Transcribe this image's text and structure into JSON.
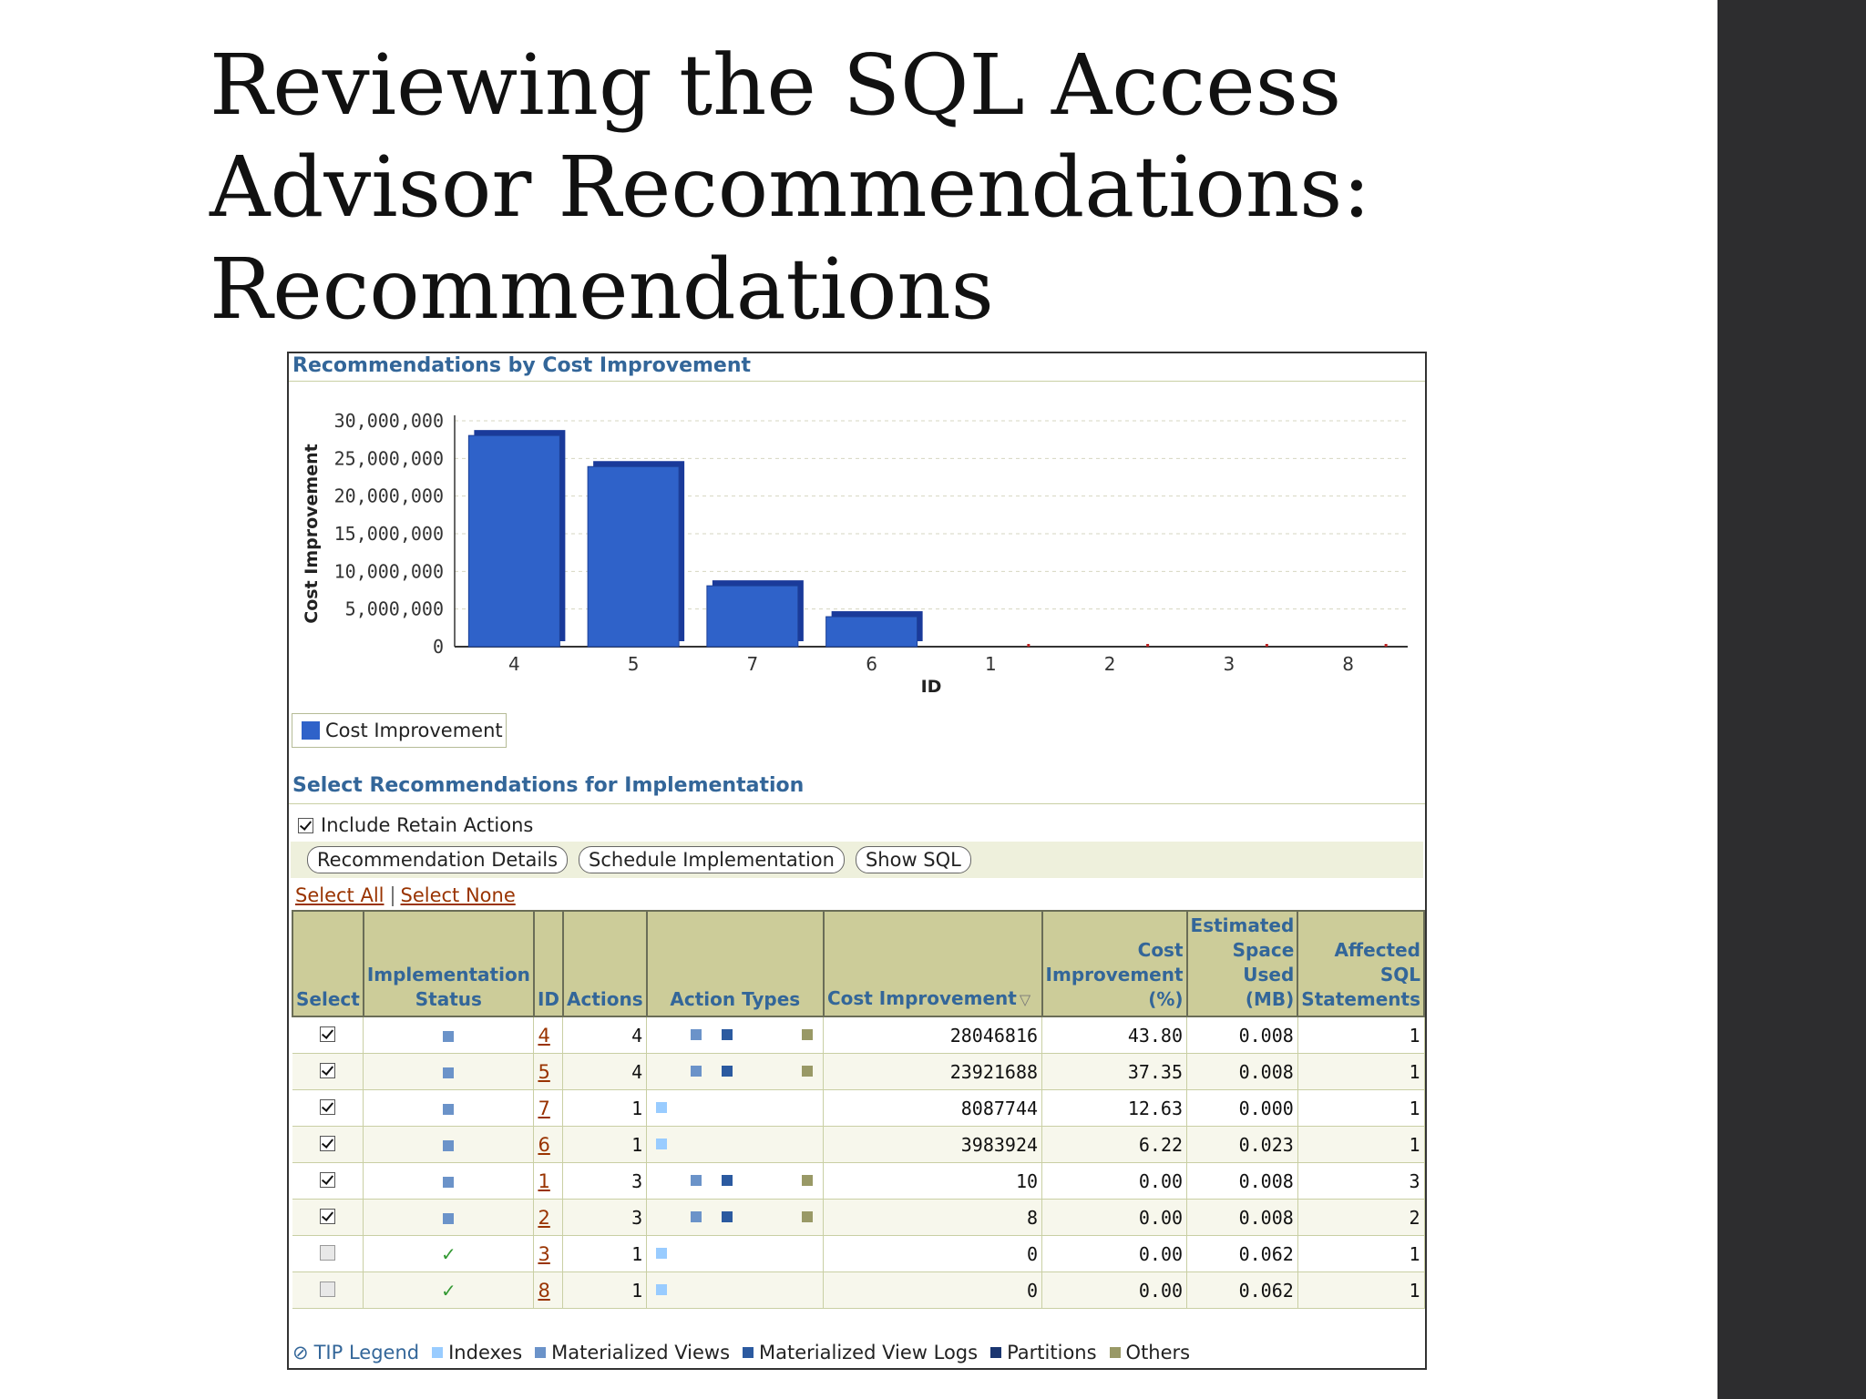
{
  "slide": {
    "title_lines": [
      "Reviewing the SQL Access",
      "Advisor Recommendations:",
      "Recommendations"
    ]
  },
  "chart_section": {
    "title": "Recommendations by Cost Improvement"
  },
  "chart_data": {
    "type": "bar",
    "xlabel": "ID",
    "ylabel": "Cost Improvement",
    "categories": [
      "4",
      "5",
      "7",
      "6",
      "1",
      "2",
      "3",
      "8"
    ],
    "series": [
      {
        "name": "Cost Improvement",
        "values": [
          28046816,
          23921688,
          8087744,
          3983924,
          10,
          8,
          0,
          0
        ]
      }
    ],
    "yticks": [
      "30,000,000",
      "25,000,000",
      "20,000,000",
      "15,000,000",
      "10,000,000",
      "5,000,000",
      "0"
    ],
    "ylim": [
      0,
      30000000
    ],
    "grid": true,
    "legend_position": "bottom-left",
    "bar_color": "#2f62c9"
  },
  "impl_section": {
    "title": "Select Recommendations for Implementation",
    "include_retain_label": "Include Retain Actions",
    "buttons": [
      "Recommendation Details",
      "Schedule Implementation",
      "Show SQL"
    ],
    "select_all": "Select All",
    "select_none": "Select None"
  },
  "table": {
    "headers": {
      "select": "Select",
      "status": "Implementation Status",
      "id": "ID",
      "actions": "Actions",
      "action_types": "Action Types",
      "cost": "Cost Improvement",
      "pct": "Cost Improvement (%)",
      "space": "Estimated Space Used (MB)",
      "affected": "Affected SQL Statements"
    },
    "rows": [
      {
        "selected": true,
        "status": "pending",
        "id": "4",
        "actions": "4",
        "types": [
          "mview",
          "mviewlog",
          "other"
        ],
        "cost": "28046816",
        "pct": "43.80",
        "space": "0.008",
        "affected": "1"
      },
      {
        "selected": true,
        "status": "pending",
        "id": "5",
        "actions": "4",
        "types": [
          "mview",
          "mviewlog",
          "other"
        ],
        "cost": "23921688",
        "pct": "37.35",
        "space": "0.008",
        "affected": "1"
      },
      {
        "selected": true,
        "status": "pending",
        "id": "7",
        "actions": "1",
        "types": [
          "index"
        ],
        "cost": "8087744",
        "pct": "12.63",
        "space": "0.000",
        "affected": "1"
      },
      {
        "selected": true,
        "status": "pending",
        "id": "6",
        "actions": "1",
        "types": [
          "index"
        ],
        "cost": "3983924",
        "pct": "6.22",
        "space": "0.023",
        "affected": "1"
      },
      {
        "selected": true,
        "status": "pending",
        "id": "1",
        "actions": "3",
        "types": [
          "mview",
          "mviewlog",
          "other"
        ],
        "cost": "10",
        "pct": "0.00",
        "space": "0.008",
        "affected": "3"
      },
      {
        "selected": true,
        "status": "pending",
        "id": "2",
        "actions": "3",
        "types": [
          "mview",
          "mviewlog",
          "other"
        ],
        "cost": "8",
        "pct": "0.00",
        "space": "0.008",
        "affected": "2"
      },
      {
        "selected": false,
        "status": "implemented",
        "id": "3",
        "actions": "1",
        "types": [
          "index"
        ],
        "cost": "0",
        "pct": "0.00",
        "space": "0.062",
        "affected": "1"
      },
      {
        "selected": false,
        "status": "implemented",
        "id": "8",
        "actions": "1",
        "types": [
          "index"
        ],
        "cost": "0",
        "pct": "0.00",
        "space": "0.062",
        "affected": "1"
      }
    ]
  },
  "tip_legend": {
    "title": "TIP Legend",
    "items": [
      {
        "label": "Indexes",
        "color": "#99ccff"
      },
      {
        "label": "Materialized Views",
        "color": "#6b93c9"
      },
      {
        "label": "Materialized View Logs",
        "color": "#2b5aa0"
      },
      {
        "label": "Partitions",
        "color": "#1a3570"
      },
      {
        "label": "Others",
        "color": "#999966"
      }
    ]
  },
  "colors": {
    "status_pending": "#6b93c9",
    "status_implemented": "#339933",
    "header_bg": "#cccc99",
    "header_text": "#336699",
    "link": "#993300"
  }
}
